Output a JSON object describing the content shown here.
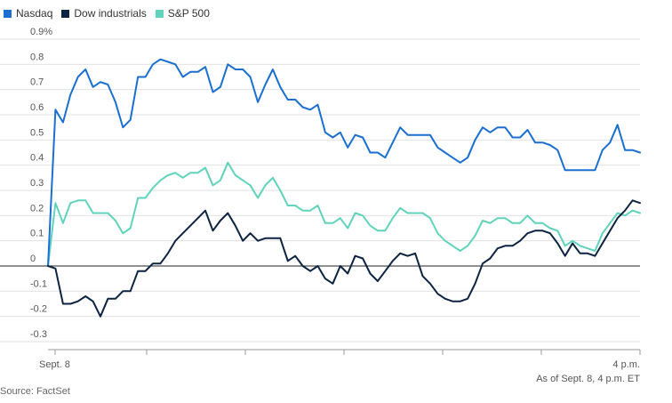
{
  "legend": {
    "items": [
      {
        "label": "Nasdaq",
        "color": "#1a6fd1"
      },
      {
        "label": "Dow industrials",
        "color": "#0c2341"
      },
      {
        "label": "S&P 500",
        "color": "#5fd3bb"
      }
    ]
  },
  "footer": {
    "as_of": "As of Sept. 8, 4 p.m. ET",
    "source": "Source: FactSet"
  },
  "chart_data": {
    "type": "line",
    "title": "",
    "xlabel": "",
    "ylabel": "",
    "ylim": [
      -0.3,
      0.9
    ],
    "y_ticks": [
      {
        "value": 0.9,
        "label": "0.9%"
      },
      {
        "value": 0.8,
        "label": "0.8"
      },
      {
        "value": 0.7,
        "label": "0.7"
      },
      {
        "value": 0.6,
        "label": "0.6"
      },
      {
        "value": 0.5,
        "label": "0.5"
      },
      {
        "value": 0.4,
        "label": "0.4"
      },
      {
        "value": 0.3,
        "label": "0.3"
      },
      {
        "value": 0.2,
        "label": "0.2"
      },
      {
        "value": 0.1,
        "label": "0.1"
      },
      {
        "value": 0,
        "label": "0"
      },
      {
        "value": -0.1,
        "label": "-0.1"
      },
      {
        "value": -0.2,
        "label": "-0.2"
      },
      {
        "value": -0.3,
        "label": "-0.3"
      }
    ],
    "x_labels": {
      "start": "Sept. 8",
      "end": "4 p.m."
    },
    "grid": true,
    "legend_position": "top-left",
    "series": [
      {
        "name": "Nasdaq",
        "color": "#1a6fd1",
        "values": [
          0,
          0.62,
          0.57,
          0.68,
          0.75,
          0.78,
          0.71,
          0.73,
          0.72,
          0.65,
          0.55,
          0.58,
          0.75,
          0.75,
          0.8,
          0.82,
          0.81,
          0.8,
          0.75,
          0.77,
          0.77,
          0.79,
          0.69,
          0.71,
          0.8,
          0.78,
          0.78,
          0.75,
          0.65,
          0.72,
          0.78,
          0.71,
          0.66,
          0.66,
          0.63,
          0.62,
          0.64,
          0.53,
          0.51,
          0.53,
          0.47,
          0.52,
          0.51,
          0.45,
          0.45,
          0.43,
          0.49,
          0.55,
          0.52,
          0.52,
          0.52,
          0.52,
          0.47,
          0.45,
          0.43,
          0.41,
          0.43,
          0.5,
          0.55,
          0.53,
          0.55,
          0.55,
          0.51,
          0.51,
          0.54,
          0.49,
          0.49,
          0.48,
          0.46,
          0.38,
          0.38,
          0.38,
          0.38,
          0.38,
          0.46,
          0.49,
          0.56,
          0.46,
          0.46,
          0.45
        ]
      },
      {
        "name": "Dow industrials",
        "color": "#0c2341",
        "values": [
          0,
          -0.01,
          -0.15,
          -0.15,
          -0.14,
          -0.12,
          -0.14,
          -0.2,
          -0.13,
          -0.13,
          -0.1,
          -0.1,
          -0.02,
          -0.02,
          0.01,
          0.01,
          0.05,
          0.1,
          0.13,
          0.16,
          0.19,
          0.22,
          0.14,
          0.18,
          0.21,
          0.16,
          0.1,
          0.13,
          0.1,
          0.11,
          0.11,
          0.11,
          0.02,
          0.04,
          0.0,
          -0.02,
          0.0,
          -0.05,
          -0.07,
          0.0,
          -0.03,
          0.04,
          0.03,
          -0.03,
          -0.06,
          -0.02,
          0.02,
          0.05,
          0.04,
          0.05,
          -0.04,
          -0.07,
          -0.11,
          -0.13,
          -0.14,
          -0.14,
          -0.13,
          -0.07,
          0.01,
          0.03,
          0.07,
          0.08,
          0.08,
          0.1,
          0.13,
          0.14,
          0.14,
          0.13,
          0.09,
          0.04,
          0.09,
          0.05,
          0.05,
          0.04,
          0.09,
          0.14,
          0.19,
          0.22,
          0.26,
          0.25
        ]
      },
      {
        "name": "S&P 500",
        "color": "#5fd3bb",
        "values": [
          0,
          0.25,
          0.17,
          0.25,
          0.26,
          0.26,
          0.21,
          0.21,
          0.21,
          0.18,
          0.13,
          0.15,
          0.27,
          0.27,
          0.31,
          0.34,
          0.36,
          0.37,
          0.35,
          0.37,
          0.37,
          0.39,
          0.32,
          0.34,
          0.41,
          0.36,
          0.34,
          0.32,
          0.27,
          0.32,
          0.35,
          0.3,
          0.24,
          0.24,
          0.22,
          0.22,
          0.24,
          0.17,
          0.17,
          0.19,
          0.15,
          0.21,
          0.2,
          0.16,
          0.14,
          0.14,
          0.19,
          0.23,
          0.21,
          0.21,
          0.21,
          0.19,
          0.13,
          0.1,
          0.08,
          0.06,
          0.08,
          0.12,
          0.18,
          0.17,
          0.19,
          0.19,
          0.17,
          0.17,
          0.2,
          0.17,
          0.17,
          0.15,
          0.14,
          0.08,
          0.1,
          0.08,
          0.07,
          0.06,
          0.13,
          0.17,
          0.21,
          0.2,
          0.22,
          0.21
        ]
      }
    ]
  }
}
